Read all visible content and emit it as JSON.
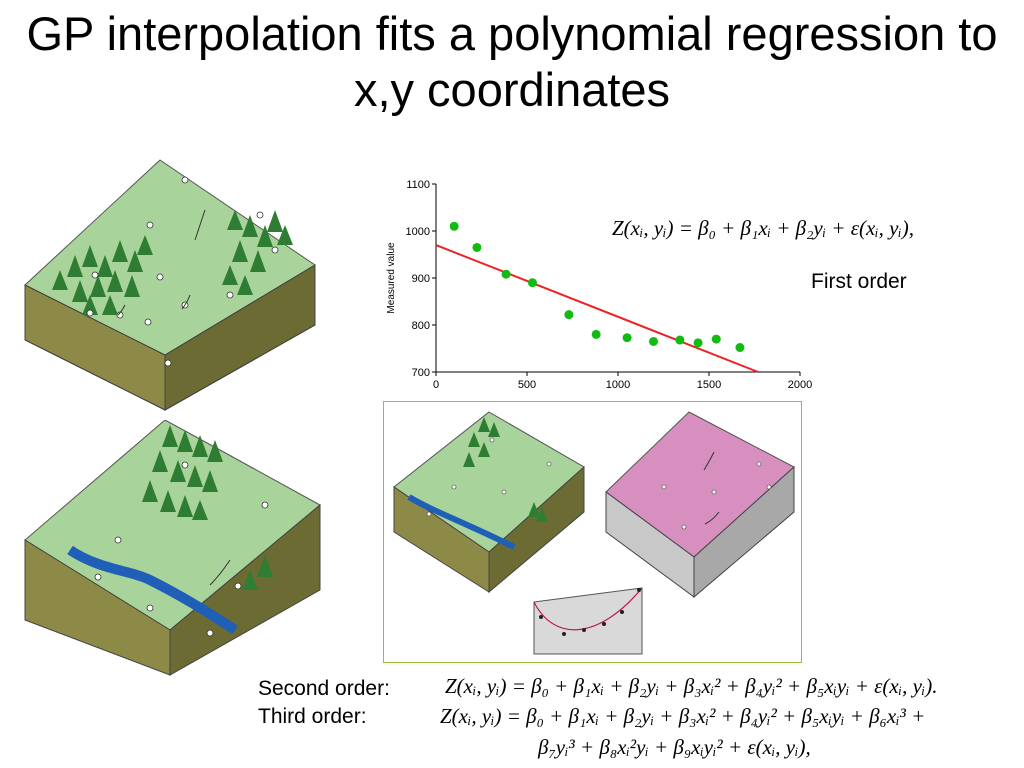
{
  "title": "GP interpolation fits a polynomial regression to x,y coordinates",
  "labels": {
    "first_order": "First order",
    "second_order": "Second order:",
    "third_order": "Third order:"
  },
  "equations": {
    "first": "Z(xᵢ, yᵢ) = β₀ + β₁xᵢ + β₂yᵢ + ε(xᵢ, yᵢ),",
    "second": "Z(xᵢ, yᵢ) = β₀ + β₁xᵢ + β₂yᵢ + β₃xᵢ² + β₄yᵢ² + β₅xᵢyᵢ + ε(xᵢ, yᵢ).",
    "third_line1": "Z(xᵢ, yᵢ) = β₀ + β₁xᵢ + β₂yᵢ + β₃xᵢ² + β₄yᵢ² + β₅xᵢyᵢ + β₆xᵢ³ +",
    "third_line2": "β₇yᵢ³ + β₈xᵢ²yᵢ + β₉xᵢyᵢ² + ε(xᵢ, yᵢ),"
  },
  "chart_data": {
    "type": "scatter",
    "ylabel": "Measured value",
    "xlim": [
      0,
      2000
    ],
    "ylim": [
      700,
      1100
    ],
    "x_ticks": [
      "0",
      "500",
      "1000",
      "1500",
      "2000"
    ],
    "y_ticks": [
      "700",
      "800",
      "900",
      "1000",
      "1100"
    ],
    "points": [
      {
        "x": 100,
        "y": 1010
      },
      {
        "x": 225,
        "y": 965
      },
      {
        "x": 385,
        "y": 908
      },
      {
        "x": 530,
        "y": 890
      },
      {
        "x": 730,
        "y": 822
      },
      {
        "x": 880,
        "y": 780
      },
      {
        "x": 1050,
        "y": 773
      },
      {
        "x": 1195,
        "y": 765
      },
      {
        "x": 1340,
        "y": 768
      },
      {
        "x": 1440,
        "y": 762
      },
      {
        "x": 1540,
        "y": 770
      },
      {
        "x": 1670,
        "y": 752
      }
    ],
    "trend_line": {
      "x": [
        0,
        1770
      ],
      "y": [
        970,
        700
      ]
    },
    "colors": {
      "points": "#11bb11",
      "line": "#ee2222"
    }
  }
}
